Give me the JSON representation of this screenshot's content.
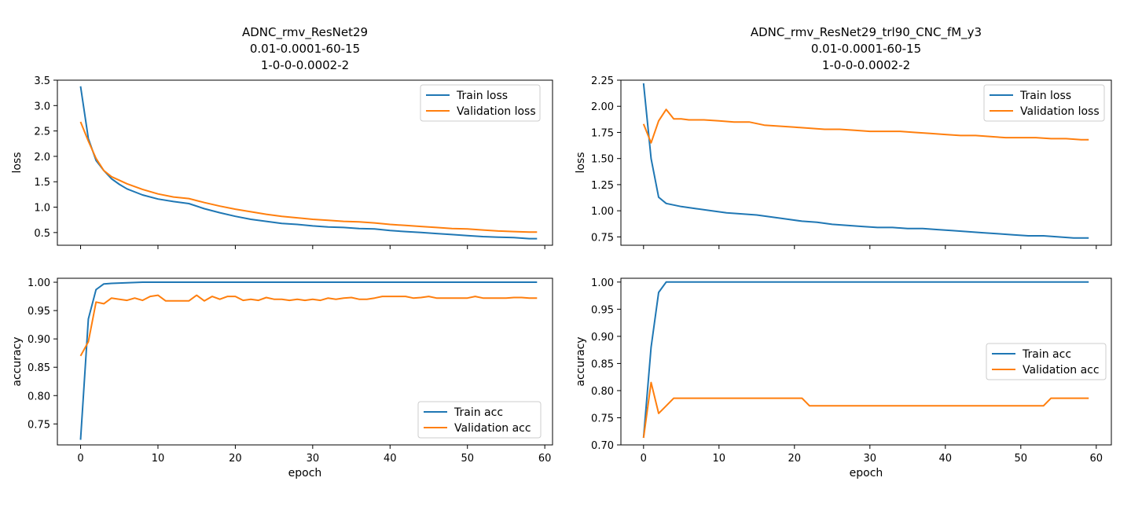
{
  "figure": {
    "colors": {
      "train": "#1f77b4",
      "validation": "#ff7f0e"
    }
  },
  "chart_data": [
    {
      "id": "left_loss",
      "type": "line",
      "title": [
        "ADNC_rmv_ResNet29",
        "0.01-0.0001-60-15",
        "1-0-0-0.0002-2"
      ],
      "xlabel": "",
      "ylabel": "loss",
      "xlim": [
        -3,
        61
      ],
      "ylim": [
        0.25,
        3.5
      ],
      "xticks": [
        0,
        10,
        20,
        30,
        40,
        50,
        60
      ],
      "xticklabels": [],
      "yticks": [
        0.5,
        1.0,
        1.5,
        2.0,
        2.5,
        3.0,
        3.5
      ],
      "yticklabels": [
        "0.5",
        "1.0",
        "1.5",
        "2.0",
        "2.5",
        "3.0",
        "3.5"
      ],
      "legend": "top-right",
      "series": [
        {
          "name": "Train loss",
          "color": "#1f77b4",
          "x": [
            0,
            1,
            2,
            3,
            4,
            5,
            6,
            8,
            10,
            12,
            14,
            16,
            18,
            20,
            22,
            24,
            26,
            28,
            30,
            32,
            34,
            36,
            38,
            40,
            42,
            44,
            46,
            48,
            50,
            52,
            54,
            56,
            58,
            59
          ],
          "values": [
            3.38,
            2.35,
            1.92,
            1.72,
            1.56,
            1.45,
            1.36,
            1.24,
            1.16,
            1.11,
            1.07,
            0.97,
            0.89,
            0.82,
            0.76,
            0.72,
            0.68,
            0.66,
            0.63,
            0.61,
            0.6,
            0.58,
            0.57,
            0.54,
            0.52,
            0.5,
            0.48,
            0.46,
            0.44,
            0.42,
            0.41,
            0.4,
            0.38,
            0.38
          ]
        },
        {
          "name": "Validation loss",
          "color": "#ff7f0e",
          "x": [
            0,
            1,
            2,
            3,
            4,
            5,
            6,
            8,
            10,
            12,
            14,
            16,
            18,
            20,
            22,
            24,
            26,
            28,
            30,
            32,
            34,
            36,
            38,
            40,
            42,
            44,
            46,
            48,
            50,
            52,
            54,
            56,
            58,
            59
          ],
          "values": [
            2.68,
            2.3,
            1.96,
            1.72,
            1.6,
            1.53,
            1.46,
            1.35,
            1.26,
            1.2,
            1.17,
            1.09,
            1.02,
            0.96,
            0.91,
            0.86,
            0.82,
            0.79,
            0.76,
            0.74,
            0.72,
            0.71,
            0.69,
            0.66,
            0.64,
            0.62,
            0.6,
            0.58,
            0.57,
            0.55,
            0.53,
            0.52,
            0.51,
            0.51
          ]
        }
      ]
    },
    {
      "id": "left_acc",
      "type": "line",
      "title": [],
      "xlabel": "epoch",
      "ylabel": "accuracy",
      "xlim": [
        -3,
        61
      ],
      "ylim": [
        0.713,
        1.007
      ],
      "xticks": [
        0,
        10,
        20,
        30,
        40,
        50,
        60
      ],
      "xticklabels": [
        "0",
        "10",
        "20",
        "30",
        "40",
        "50",
        "60"
      ],
      "yticks": [
        0.75,
        0.8,
        0.85,
        0.9,
        0.95,
        1.0
      ],
      "yticklabels": [
        "0.75",
        "0.80",
        "0.85",
        "0.90",
        "0.95",
        "1.00"
      ],
      "legend": "lower-right",
      "series": [
        {
          "name": "Train acc",
          "color": "#1f77b4",
          "x": [
            0,
            1,
            2,
            3,
            4,
            6,
            8,
            10,
            20,
            30,
            40,
            50,
            59
          ],
          "values": [
            0.722,
            0.935,
            0.987,
            0.997,
            0.998,
            0.999,
            1.0,
            1.0,
            1.0,
            1.0,
            1.0,
            1.0,
            1.0
          ]
        },
        {
          "name": "Validation acc",
          "color": "#ff7f0e",
          "x": [
            0,
            1,
            2,
            3,
            4,
            5,
            6,
            7,
            8,
            9,
            10,
            11,
            12,
            13,
            14,
            15,
            16,
            17,
            18,
            19,
            20,
            21,
            22,
            23,
            24,
            25,
            26,
            27,
            28,
            29,
            30,
            31,
            32,
            33,
            34,
            35,
            36,
            37,
            38,
            39,
            40,
            41,
            42,
            43,
            44,
            45,
            46,
            47,
            48,
            49,
            50,
            51,
            52,
            53,
            54,
            55,
            56,
            57,
            58,
            59
          ],
          "values": [
            0.87,
            0.895,
            0.965,
            0.962,
            0.972,
            0.97,
            0.968,
            0.972,
            0.968,
            0.975,
            0.977,
            0.967,
            0.967,
            0.967,
            0.967,
            0.977,
            0.967,
            0.975,
            0.97,
            0.975,
            0.975,
            0.968,
            0.97,
            0.968,
            0.973,
            0.97,
            0.97,
            0.968,
            0.97,
            0.968,
            0.97,
            0.968,
            0.972,
            0.97,
            0.972,
            0.973,
            0.97,
            0.97,
            0.972,
            0.975,
            0.975,
            0.975,
            0.975,
            0.972,
            0.973,
            0.975,
            0.972,
            0.972,
            0.972,
            0.972,
            0.972,
            0.975,
            0.972,
            0.972,
            0.972,
            0.972,
            0.973,
            0.973,
            0.972,
            0.972
          ]
        }
      ]
    },
    {
      "id": "right_loss",
      "type": "line",
      "title": [
        "ADNC_rmv_ResNet29_trl90_CNC_fM_y3",
        "0.01-0.0001-60-15",
        "1-0-0-0.0002-2"
      ],
      "xlabel": "",
      "ylabel": "loss",
      "xlim": [
        -3,
        62
      ],
      "ylim": [
        0.67,
        2.25
      ],
      "xticks": [
        0,
        10,
        20,
        30,
        40,
        50,
        60
      ],
      "xticklabels": [],
      "yticks": [
        0.75,
        1.0,
        1.25,
        1.5,
        1.75,
        2.0,
        2.25
      ],
      "yticklabels": [
        "0.75",
        "1.00",
        "1.25",
        "1.50",
        "1.75",
        "2.00",
        "2.25"
      ],
      "legend": "top-right",
      "series": [
        {
          "name": "Train loss",
          "color": "#1f77b4",
          "x": [
            0,
            1,
            2,
            3,
            5,
            7,
            9,
            11,
            13,
            15,
            17,
            19,
            21,
            23,
            25,
            27,
            29,
            31,
            33,
            35,
            37,
            39,
            41,
            43,
            45,
            47,
            49,
            51,
            53,
            55,
            57,
            59
          ],
          "values": [
            2.22,
            1.5,
            1.13,
            1.07,
            1.04,
            1.02,
            1.0,
            0.98,
            0.97,
            0.96,
            0.94,
            0.92,
            0.9,
            0.89,
            0.87,
            0.86,
            0.85,
            0.84,
            0.84,
            0.83,
            0.83,
            0.82,
            0.81,
            0.8,
            0.79,
            0.78,
            0.77,
            0.76,
            0.76,
            0.75,
            0.74,
            0.74
          ]
        },
        {
          "name": "Validation loss",
          "color": "#ff7f0e",
          "x": [
            0,
            1,
            2,
            3,
            4,
            5,
            6,
            8,
            10,
            12,
            14,
            16,
            18,
            20,
            22,
            24,
            26,
            28,
            30,
            32,
            34,
            36,
            38,
            40,
            42,
            44,
            46,
            48,
            50,
            52,
            54,
            56,
            58,
            59
          ],
          "values": [
            1.83,
            1.65,
            1.86,
            1.97,
            1.88,
            1.88,
            1.87,
            1.87,
            1.86,
            1.85,
            1.85,
            1.82,
            1.81,
            1.8,
            1.79,
            1.78,
            1.78,
            1.77,
            1.76,
            1.76,
            1.76,
            1.75,
            1.74,
            1.73,
            1.72,
            1.72,
            1.71,
            1.7,
            1.7,
            1.7,
            1.69,
            1.69,
            1.68,
            1.68
          ]
        }
      ]
    },
    {
      "id": "right_acc",
      "type": "line",
      "title": [],
      "xlabel": "epoch",
      "ylabel": "accuracy",
      "xlim": [
        -3,
        62
      ],
      "ylim": [
        0.7,
        1.007
      ],
      "xticks": [
        0,
        10,
        20,
        30,
        40,
        50,
        60
      ],
      "xticklabels": [
        "0",
        "10",
        "20",
        "30",
        "40",
        "50",
        "60"
      ],
      "yticks": [
        0.7,
        0.75,
        0.8,
        0.85,
        0.9,
        0.95,
        1.0
      ],
      "yticklabels": [
        "0.70",
        "0.75",
        "0.80",
        "0.85",
        "0.90",
        "0.95",
        "1.00"
      ],
      "legend": "center-right",
      "series": [
        {
          "name": "Train acc",
          "color": "#1f77b4",
          "x": [
            0,
            1,
            2,
            3,
            10,
            20,
            30,
            40,
            50,
            59
          ],
          "values": [
            0.713,
            0.88,
            0.981,
            1.0,
            1.0,
            1.0,
            1.0,
            1.0,
            1.0,
            1.0
          ]
        },
        {
          "name": "Validation acc",
          "color": "#ff7f0e",
          "x": [
            0,
            1,
            2,
            3,
            4,
            10,
            20,
            21,
            22,
            30,
            40,
            50,
            53,
            54,
            59
          ],
          "values": [
            0.713,
            0.815,
            0.758,
            0.772,
            0.786,
            0.786,
            0.786,
            0.786,
            0.772,
            0.772,
            0.772,
            0.772,
            0.772,
            0.786,
            0.786
          ]
        }
      ]
    }
  ]
}
